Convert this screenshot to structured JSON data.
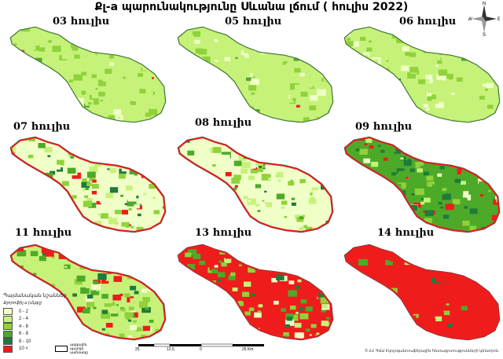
{
  "title": "Քլ-a պարունակությունը Սևանա լճում ( հուլիս 2022)",
  "panels": [
    {
      "label": "03 հուլիս"
    },
    {
      "label": "05 հուլիս"
    },
    {
      "label": "06 հուլիս"
    },
    {
      "label": "07 հուլիս"
    },
    {
      "label": "08 հուլիս"
    },
    {
      "label": "09 հուլիս"
    },
    {
      "label": "11 հուլիս"
    },
    {
      "label": "13 հուլիս"
    },
    {
      "label": "14 հուլիս"
    }
  ],
  "legend": {
    "title": "Պայմանական նշաններ",
    "subtitle": "Քլորոֆիլ a (մկգ/լ)",
    "classes": [
      {
        "label": "0 - 2",
        "color": "#f0ffc8"
      },
      {
        "label": "2 - 4",
        "color": "#c6f27a"
      },
      {
        "label": "4 - 6",
        "color": "#8fd23a"
      },
      {
        "label": "6 - 8",
        "color": "#4daa28"
      },
      {
        "label": "8 - 10",
        "color": "#1f7a3c"
      },
      {
        "label": "10 <",
        "color": "#ef1c1c"
      }
    ],
    "border_label": "ազգային պարկի սահմանը"
  },
  "scale": {
    "ticks": [
      "25",
      "12.5",
      "0",
      "25 Km"
    ]
  },
  "compass": {
    "n": "N",
    "s": "S",
    "e": "E",
    "w": "W"
  },
  "credit": "© ՀՀ ԳԱԱ Էկոլոգանոոսֆերային հետազոտությունների կենտրոն"
}
